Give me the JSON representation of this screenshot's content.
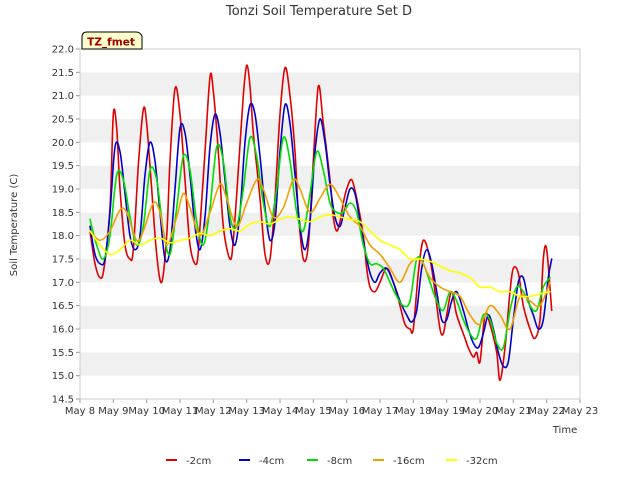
{
  "chart_data": {
    "type": "line",
    "title": "Tonzi Soil Temperature Set D",
    "xlabel": "Time",
    "ylabel": "Soil Temperature (C)",
    "badge": "TZ_fmet",
    "xlim": [
      8,
      23
    ],
    "ylim": [
      14.5,
      22.0
    ],
    "x_ticks": [
      8,
      9,
      10,
      11,
      12,
      13,
      14,
      15,
      16,
      17,
      18,
      19,
      20,
      21,
      22,
      23
    ],
    "x_tick_labels": [
      "May 8",
      "May 9",
      "May 10",
      "May 11",
      "May 12",
      "May 13",
      "May 14",
      "May 15",
      "May 16",
      "May 17",
      "May 18",
      "May 19",
      "May 20",
      "May 21",
      "May 22",
      "May 23"
    ],
    "y_ticks": [
      14.5,
      15.0,
      15.5,
      16.0,
      16.5,
      17.0,
      17.5,
      18.0,
      18.5,
      19.0,
      19.5,
      20.0,
      20.5,
      21.0,
      21.5,
      22.0
    ],
    "y_tick_labels": [
      "14.5",
      "15.0",
      "15.5",
      "16.0",
      "16.5",
      "17.0",
      "17.5",
      "18.0",
      "18.5",
      "19.0",
      "19.5",
      "20.0",
      "20.5",
      "21.0",
      "21.5",
      "22.0"
    ],
    "grid": "horizontal bands",
    "legend_position": "bottom",
    "series": [
      {
        "name": "-2cm",
        "color": "#e00000",
        "x": [
          8.3,
          8.45,
          8.6,
          8.72,
          8.9,
          9.0,
          9.1,
          9.2,
          9.35,
          9.5,
          9.6,
          9.75,
          9.9,
          10.0,
          10.15,
          10.3,
          10.45,
          10.6,
          10.7,
          10.85,
          11.0,
          11.15,
          11.3,
          11.5,
          11.6,
          11.75,
          11.9,
          12.0,
          12.15,
          12.3,
          12.5,
          12.6,
          12.75,
          12.9,
          13.0,
          13.1,
          13.2,
          13.4,
          13.55,
          13.7,
          13.85,
          14.0,
          14.15,
          14.3,
          14.45,
          14.55,
          14.7,
          14.85,
          15.0,
          15.15,
          15.3,
          15.5,
          15.6,
          15.7,
          15.8,
          15.9,
          16.0,
          16.15,
          16.3,
          16.5,
          16.6,
          16.7,
          16.85,
          17.0,
          17.2,
          17.4,
          17.6,
          17.75,
          17.9,
          18.0,
          18.15,
          18.3,
          18.5,
          18.65,
          18.8,
          18.9,
          19.0,
          19.15,
          19.3,
          19.5,
          19.65,
          19.8,
          19.9,
          20.0,
          20.15,
          20.3,
          20.5,
          20.6,
          20.75,
          20.9,
          21.0,
          21.15,
          21.3,
          21.5,
          21.65,
          21.8,
          21.9,
          22.0,
          22.15
        ],
        "y": [
          18.1,
          17.4,
          17.1,
          17.3,
          18.6,
          20.6,
          20.3,
          19.0,
          17.8,
          17.5,
          17.7,
          19.5,
          20.7,
          20.4,
          19.0,
          17.6,
          17.0,
          18.0,
          19.6,
          21.15,
          20.6,
          19.2,
          17.8,
          17.4,
          18.2,
          19.8,
          21.4,
          21.1,
          19.8,
          18.2,
          17.5,
          17.9,
          19.4,
          21.0,
          21.65,
          21.2,
          20.2,
          18.8,
          17.6,
          17.5,
          18.8,
          20.6,
          21.6,
          21.0,
          19.8,
          18.5,
          17.5,
          17.8,
          19.6,
          21.2,
          20.4,
          19.2,
          18.4,
          18.1,
          18.3,
          18.7,
          19.0,
          19.2,
          18.8,
          18.0,
          17.3,
          16.9,
          16.8,
          17.0,
          17.3,
          17.0,
          16.5,
          16.1,
          16.0,
          16.0,
          17.2,
          17.9,
          17.5,
          16.8,
          16.0,
          15.9,
          16.3,
          16.8,
          16.3,
          15.9,
          15.6,
          15.4,
          15.5,
          15.3,
          16.3,
          16.1,
          15.5,
          14.9,
          15.6,
          16.8,
          17.3,
          17.2,
          16.5,
          16.0,
          15.8,
          16.2,
          17.5,
          17.7,
          16.4
        ]
      },
      {
        "name": "-4cm",
        "color": "#0000cc",
        "x": [
          8.3,
          8.45,
          8.6,
          8.75,
          8.9,
          9.05,
          9.2,
          9.35,
          9.5,
          9.65,
          9.8,
          9.95,
          10.1,
          10.25,
          10.4,
          10.55,
          10.7,
          10.85,
          11.0,
          11.15,
          11.3,
          11.45,
          11.6,
          11.75,
          11.9,
          12.05,
          12.2,
          12.35,
          12.5,
          12.65,
          12.8,
          12.95,
          13.1,
          13.25,
          13.4,
          13.55,
          13.7,
          13.85,
          14.0,
          14.15,
          14.3,
          14.45,
          14.6,
          14.75,
          14.9,
          15.05,
          15.2,
          15.35,
          15.5,
          15.65,
          15.8,
          15.95,
          16.1,
          16.25,
          16.4,
          16.55,
          16.7,
          16.85,
          17.0,
          17.2,
          17.4,
          17.6,
          17.8,
          17.95,
          18.1,
          18.25,
          18.4,
          18.55,
          18.7,
          18.85,
          19.0,
          19.15,
          19.3,
          19.5,
          19.65,
          19.8,
          19.95,
          20.1,
          20.25,
          20.4,
          20.55,
          20.7,
          20.85,
          21.0,
          21.15,
          21.3,
          21.45,
          21.6,
          21.75,
          21.9,
          22.05,
          22.15
        ],
        "y": [
          18.2,
          17.6,
          17.4,
          17.5,
          18.5,
          19.9,
          19.8,
          18.9,
          18.0,
          17.7,
          18.0,
          19.3,
          20.0,
          19.6,
          18.5,
          17.5,
          17.7,
          19.0,
          20.3,
          20.2,
          19.3,
          18.2,
          17.7,
          18.4,
          19.9,
          20.6,
          20.2,
          19.2,
          18.2,
          17.8,
          18.5,
          20.0,
          20.8,
          20.6,
          19.7,
          18.6,
          17.9,
          18.3,
          19.8,
          20.8,
          20.4,
          19.3,
          18.2,
          17.7,
          18.3,
          19.8,
          20.5,
          20.0,
          19.1,
          18.4,
          18.2,
          18.6,
          19.0,
          18.9,
          18.3,
          17.7,
          17.2,
          17.0,
          17.2,
          17.3,
          17.0,
          16.6,
          16.3,
          16.15,
          16.4,
          17.3,
          17.7,
          17.4,
          16.8,
          16.2,
          16.2,
          16.6,
          16.8,
          16.4,
          16.0,
          15.7,
          15.6,
          15.9,
          16.3,
          16.0,
          15.5,
          15.2,
          15.3,
          16.2,
          17.0,
          17.1,
          16.6,
          16.3,
          16.0,
          16.2,
          17.1,
          17.5
        ],
        "_end": null
      },
      {
        "name": "-8cm",
        "color": "#00dd00",
        "x": [
          8.3,
          8.5,
          8.7,
          8.9,
          9.1,
          9.3,
          9.5,
          9.7,
          9.9,
          10.1,
          10.3,
          10.5,
          10.7,
          10.9,
          11.1,
          11.3,
          11.5,
          11.7,
          11.9,
          12.1,
          12.3,
          12.5,
          12.7,
          12.9,
          13.1,
          13.3,
          13.5,
          13.7,
          13.9,
          14.1,
          14.3,
          14.5,
          14.7,
          14.9,
          15.1,
          15.3,
          15.5,
          15.7,
          15.9,
          16.1,
          16.3,
          16.5,
          16.7,
          16.9,
          17.1,
          17.3,
          17.5,
          17.7,
          17.9,
          18.1,
          18.3,
          18.5,
          18.7,
          18.9,
          19.1,
          19.3,
          19.5,
          19.7,
          19.9,
          20.1,
          20.3,
          20.5,
          20.7,
          20.9,
          21.1,
          21.3,
          21.5,
          21.7,
          21.9,
          22.1
        ],
        "y": [
          18.35,
          17.8,
          17.5,
          18.0,
          19.3,
          19.2,
          18.4,
          17.8,
          18.2,
          19.4,
          19.2,
          18.1,
          17.6,
          18.6,
          19.7,
          19.4,
          18.3,
          17.8,
          18.6,
          19.9,
          19.6,
          18.4,
          18.2,
          19.0,
          20.1,
          19.7,
          18.7,
          18.2,
          19.0,
          20.1,
          19.6,
          18.5,
          18.1,
          18.9,
          19.8,
          19.4,
          18.7,
          18.5,
          18.5,
          18.7,
          18.5,
          17.8,
          17.4,
          17.4,
          17.3,
          17.0,
          16.7,
          16.5,
          16.6,
          17.5,
          17.4,
          17.0,
          16.6,
          16.4,
          16.8,
          16.6,
          16.2,
          15.9,
          15.8,
          16.3,
          16.2,
          15.7,
          15.6,
          16.4,
          16.9,
          16.8,
          16.5,
          16.4,
          16.9,
          17.1
        ]
      },
      {
        "name": "-16cm",
        "color": "#f0a000",
        "x": [
          8.3,
          8.6,
          8.9,
          9.2,
          9.4,
          9.7,
          9.9,
          10.2,
          10.4,
          10.6,
          10.9,
          11.1,
          11.3,
          11.6,
          11.9,
          12.2,
          12.4,
          12.7,
          13.0,
          13.3,
          13.5,
          13.8,
          14.1,
          14.4,
          14.6,
          14.9,
          15.2,
          15.5,
          15.8,
          16.1,
          16.4,
          16.7,
          17.0,
          17.3,
          17.6,
          17.9,
          18.2,
          18.5,
          18.8,
          19.1,
          19.4,
          19.7,
          20.0,
          20.3,
          20.6,
          20.9,
          21.2,
          21.5,
          21.8,
          22.1
        ],
        "y": [
          18.1,
          17.9,
          18.1,
          18.55,
          18.5,
          17.9,
          18.1,
          18.7,
          18.5,
          17.8,
          18.4,
          18.9,
          18.6,
          18.0,
          18.5,
          19.1,
          18.8,
          18.2,
          18.7,
          19.2,
          19.0,
          18.4,
          18.6,
          19.2,
          19.0,
          18.5,
          18.8,
          19.1,
          18.8,
          18.4,
          18.2,
          17.8,
          17.6,
          17.3,
          17.0,
          17.4,
          17.5,
          17.1,
          16.9,
          16.8,
          16.7,
          16.3,
          16.1,
          16.5,
          16.3,
          16.0,
          16.7,
          16.6,
          16.5,
          17.0
        ]
      },
      {
        "name": "-32cm",
        "color": "#ffff00",
        "x": [
          8.3,
          8.6,
          8.9,
          9.2,
          9.5,
          9.8,
          10.1,
          10.4,
          10.7,
          11.0,
          11.3,
          11.6,
          11.9,
          12.2,
          12.5,
          12.8,
          13.1,
          13.4,
          13.7,
          14.0,
          14.3,
          14.6,
          14.9,
          15.2,
          15.5,
          15.8,
          16.1,
          16.4,
          16.7,
          17.0,
          17.3,
          17.6,
          17.9,
          18.2,
          18.5,
          18.8,
          19.1,
          19.4,
          19.7,
          20.0,
          20.3,
          20.6,
          20.9,
          21.2,
          21.5,
          21.8,
          22.1
        ],
        "y": [
          18.1,
          17.8,
          17.6,
          17.7,
          17.9,
          17.8,
          17.9,
          17.95,
          17.85,
          17.9,
          17.95,
          18.05,
          18.0,
          18.1,
          18.15,
          18.1,
          18.25,
          18.3,
          18.25,
          18.35,
          18.4,
          18.35,
          18.3,
          18.4,
          18.45,
          18.4,
          18.35,
          18.3,
          18.1,
          17.9,
          17.8,
          17.7,
          17.5,
          17.5,
          17.45,
          17.35,
          17.25,
          17.2,
          17.1,
          16.9,
          16.9,
          16.8,
          16.8,
          16.7,
          16.7,
          16.75,
          16.8
        ]
      }
    ]
  }
}
